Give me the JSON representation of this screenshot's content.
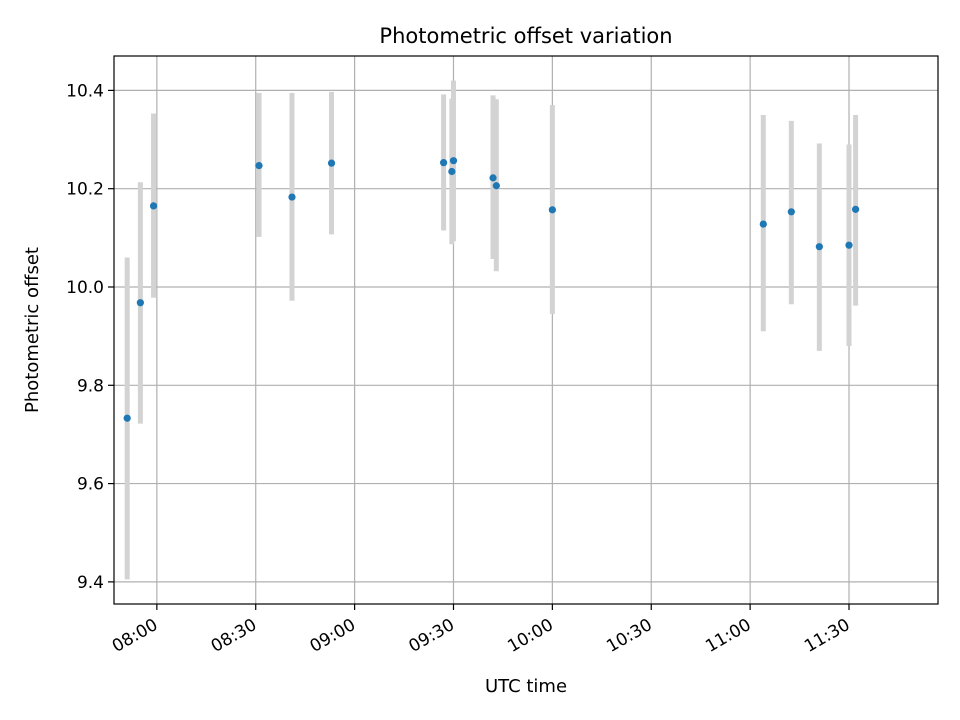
{
  "chart_data": {
    "type": "scatter",
    "title": "Photometric offset variation",
    "xlabel": "UTC time",
    "ylabel": "Photometric offset",
    "x_unit": "time-of-day",
    "xlim": [
      "07:47",
      "11:57"
    ],
    "ylim": [
      9.355,
      10.47
    ],
    "grid": true,
    "x_ticks": [
      "08:00",
      "08:30",
      "09:00",
      "09:30",
      "10:00",
      "10:30",
      "11:00",
      "11:30"
    ],
    "y_ticks": [
      "9.4",
      "9.6",
      "9.8",
      "10.0",
      "10.2",
      "10.4"
    ],
    "colors": {
      "point": "#1f77b4",
      "errorbar": "#d3d3d3",
      "grid": "#b0b0b0"
    },
    "points": [
      {
        "x": "07:51:00",
        "y": 9.733,
        "err_low": 9.405,
        "err_high": 10.06
      },
      {
        "x": "07:55:00",
        "y": 9.968,
        "err_low": 9.722,
        "err_high": 10.213
      },
      {
        "x": "07:59:00",
        "y": 10.165,
        "err_low": 9.978,
        "err_high": 10.353
      },
      {
        "x": "08:31:00",
        "y": 10.247,
        "err_low": 10.102,
        "err_high": 10.395
      },
      {
        "x": "08:41:00",
        "y": 10.183,
        "err_low": 9.972,
        "err_high": 10.395
      },
      {
        "x": "08:53:00",
        "y": 10.252,
        "err_low": 10.107,
        "err_high": 10.397
      },
      {
        "x": "09:27:00",
        "y": 10.253,
        "err_low": 10.115,
        "err_high": 10.392
      },
      {
        "x": "09:29:30",
        "y": 10.235,
        "err_low": 10.087,
        "err_high": 10.383
      },
      {
        "x": "09:30:00",
        "y": 10.257,
        "err_low": 10.093,
        "err_high": 10.42
      },
      {
        "x": "09:42:00",
        "y": 10.222,
        "err_low": 10.057,
        "err_high": 10.39
      },
      {
        "x": "09:43:00",
        "y": 10.206,
        "err_low": 10.032,
        "err_high": 10.382
      },
      {
        "x": "10:00:00",
        "y": 10.157,
        "err_low": 9.945,
        "err_high": 10.37
      },
      {
        "x": "11:04:00",
        "y": 10.128,
        "err_low": 9.91,
        "err_high": 10.35
      },
      {
        "x": "11:12:30",
        "y": 10.153,
        "err_low": 9.965,
        "err_high": 10.338
      },
      {
        "x": "11:21:00",
        "y": 10.082,
        "err_low": 9.87,
        "err_high": 10.292
      },
      {
        "x": "11:30:00",
        "y": 10.085,
        "err_low": 9.88,
        "err_high": 10.29
      },
      {
        "x": "11:32:00",
        "y": 10.158,
        "err_low": 9.962,
        "err_high": 10.35
      }
    ]
  }
}
